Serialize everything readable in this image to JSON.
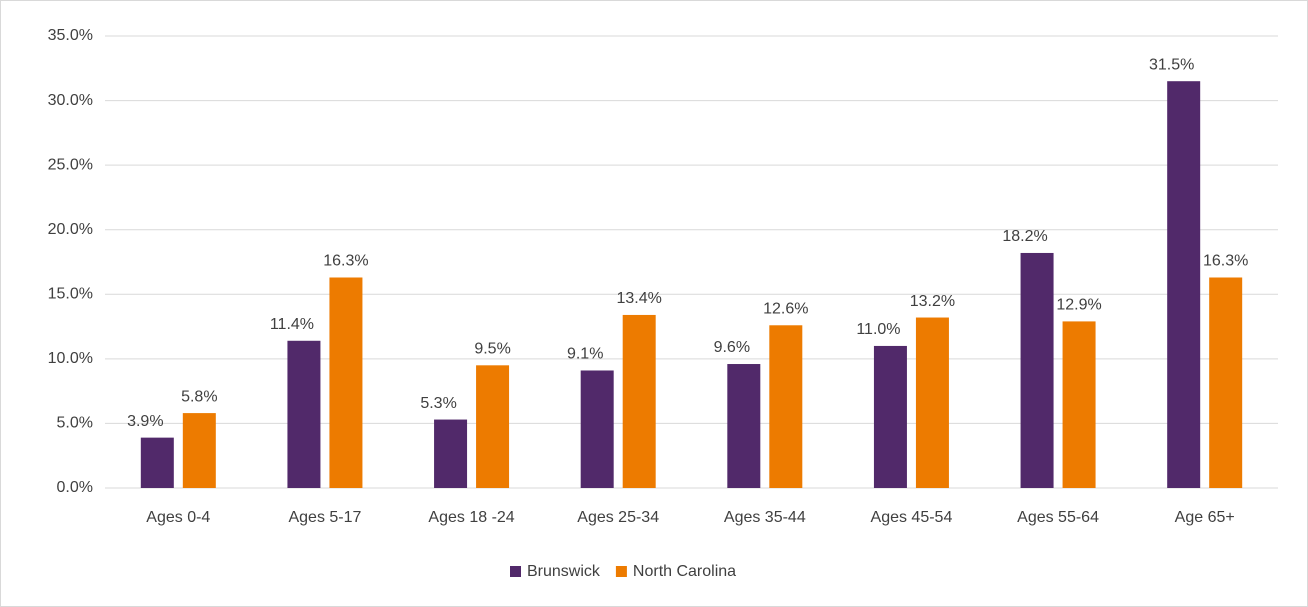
{
  "chart_data": {
    "type": "bar",
    "categories": [
      "Ages 0-4",
      "Ages 5-17",
      "Ages 18 -24",
      "Ages 25-34",
      "Ages 35-44",
      "Ages 45-54",
      "Ages 55-64",
      "Age 65+"
    ],
    "series": [
      {
        "name": "Brunswick",
        "color": "#51296a",
        "values": [
          3.9,
          11.4,
          5.3,
          9.1,
          9.6,
          11.0,
          18.2,
          31.5
        ],
        "value_labels": [
          "3.9%",
          "11.4%",
          "5.3%",
          "9.1%",
          "9.6%",
          "11.0%",
          "18.2%",
          "31.5%"
        ]
      },
      {
        "name": "North Carolina",
        "color": "#ed7b00",
        "values": [
          5.8,
          16.3,
          9.5,
          13.4,
          12.6,
          13.2,
          12.9,
          16.3
        ],
        "value_labels": [
          "5.8%",
          "16.3%",
          "9.5%",
          "13.4%",
          "12.6%",
          "13.2%",
          "12.9%",
          "16.3%"
        ]
      }
    ],
    "ylim": [
      0,
      35
    ],
    "yticks": [
      {
        "value": 0,
        "label": "0.0%"
      },
      {
        "value": 5,
        "label": "5.0%"
      },
      {
        "value": 10,
        "label": "10.0%"
      },
      {
        "value": 15,
        "label": "15.0%"
      },
      {
        "value": 20,
        "label": "20.0%"
      },
      {
        "value": 25,
        "label": "25.0%"
      },
      {
        "value": 30,
        "label": "30.0%"
      },
      {
        "value": 35,
        "label": "35.0%"
      }
    ],
    "grid": true,
    "legend": "bottom"
  }
}
